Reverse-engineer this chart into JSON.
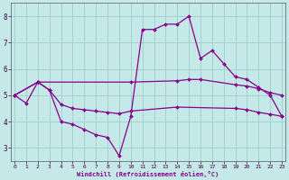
{
  "background_color": "#c5e8e8",
  "line_color": "#880088",
  "grid_color": "#9ecece",
  "spine_color": "#555566",
  "xlim": [
    -0.3,
    23.3
  ],
  "ylim": [
    2.5,
    8.5
  ],
  "yticks": [
    3,
    4,
    5,
    6,
    7,
    8
  ],
  "xticks": [
    0,
    1,
    2,
    3,
    4,
    5,
    6,
    7,
    8,
    9,
    10,
    11,
    12,
    13,
    14,
    15,
    16,
    17,
    18,
    19,
    20,
    21,
    22,
    23
  ],
  "xlabel": "Windchill (Refroidissement éolien,°C)",
  "series": [
    {
      "x": [
        0,
        1,
        2,
        3,
        4,
        5,
        6,
        7,
        8,
        9,
        10,
        11,
        12,
        13,
        14,
        15,
        16,
        17,
        18,
        19,
        20,
        21,
        22,
        23
      ],
      "y": [
        5.0,
        4.7,
        5.5,
        5.2,
        4.0,
        3.9,
        3.7,
        3.5,
        3.4,
        2.7,
        4.2,
        7.5,
        7.5,
        7.7,
        7.7,
        8.0,
        6.4,
        6.7,
        6.2,
        5.7,
        5.6,
        5.3,
        5.0,
        4.2
      ]
    },
    {
      "x": [
        0,
        2,
        10,
        14,
        15,
        16,
        19,
        20,
        21,
        22,
        23
      ],
      "y": [
        5.0,
        5.5,
        5.5,
        5.55,
        5.6,
        5.6,
        5.4,
        5.35,
        5.25,
        5.1,
        5.0
      ]
    },
    {
      "x": [
        0,
        2,
        3,
        4,
        5,
        6,
        7,
        8,
        9,
        10,
        14,
        19,
        20,
        21,
        22,
        23
      ],
      "y": [
        5.0,
        5.5,
        5.2,
        4.65,
        4.5,
        4.45,
        4.4,
        4.35,
        4.3,
        4.4,
        4.55,
        4.5,
        4.45,
        4.35,
        4.28,
        4.2
      ]
    }
  ]
}
